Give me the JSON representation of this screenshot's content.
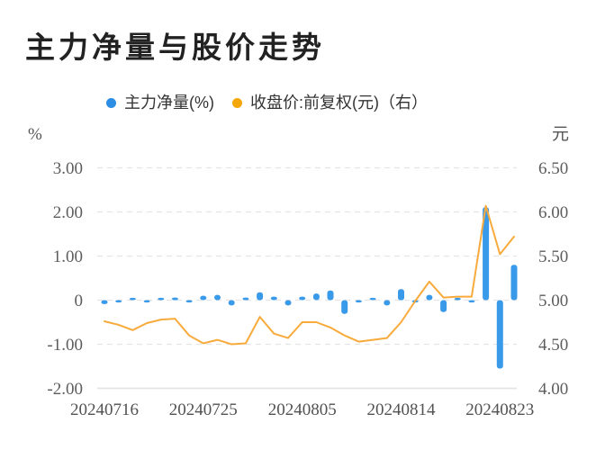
{
  "title": "主力净量与股价走势",
  "legend": [
    {
      "label": "主力净量(%)",
      "color": "#2b8de3"
    },
    {
      "label": "收盘价:前复权(元)（右）",
      "color": "#f5a709"
    }
  ],
  "left_axis_unit": "%",
  "right_axis_unit": "元",
  "chart_data": {
    "type": "bar+line combo, dual y-axis",
    "title": "主力净量与股价走势",
    "num_points": 30,
    "x_axis_labels": [
      {
        "text": "20240716",
        "index": 0
      },
      {
        "text": "20240725",
        "index": 7
      },
      {
        "text": "20240805",
        "index": 14
      },
      {
        "text": "20240814",
        "index": 21
      },
      {
        "text": "20240823",
        "index": 28
      }
    ],
    "left_ticks": [
      "3.00",
      "2.00",
      "1.00",
      "0",
      "-1.00",
      "-2.00"
    ],
    "left_range": [
      -2.0,
      3.0
    ],
    "right_ticks": [
      "6.50",
      "6.00",
      "5.50",
      "5.00",
      "4.50",
      "4.00"
    ],
    "right_range": [
      4.0,
      6.5
    ],
    "grid": "horizontal dashed gridlines, solid bottom axis",
    "legend_position": "top center",
    "series": [
      {
        "name": "主力净量(%)",
        "type": "bar",
        "axis": "left",
        "color": "#3a9aea",
        "values": [
          -0.09,
          -0.04,
          0.05,
          -0.05,
          0.04,
          0.06,
          -0.04,
          0.1,
          0.12,
          -0.12,
          0.06,
          0.18,
          0.08,
          -0.12,
          0.08,
          0.15,
          0.22,
          -0.31,
          -0.04,
          0.05,
          -0.12,
          0.25,
          -0.05,
          0.12,
          -0.27,
          0.03,
          -0.03,
          2.11,
          -1.55,
          0.8
        ]
      },
      {
        "name": "收盘价:前复权(元)",
        "type": "line",
        "axis": "right",
        "color": "#f8ab3c",
        "values": [
          4.76,
          4.72,
          4.66,
          4.74,
          4.78,
          4.79,
          4.6,
          4.51,
          4.55,
          4.5,
          4.51,
          4.81,
          4.62,
          4.57,
          4.75,
          4.75,
          4.69,
          4.6,
          4.53,
          4.55,
          4.57,
          4.75,
          4.99,
          5.21,
          5.03,
          5.04,
          5.04,
          6.07,
          5.52,
          5.72
        ]
      }
    ],
    "colors": {
      "bar": "#3a9aea",
      "line": "#f8ab3c",
      "gridline": "#e4e4e4",
      "tick_text": "#5d5d5d"
    }
  }
}
